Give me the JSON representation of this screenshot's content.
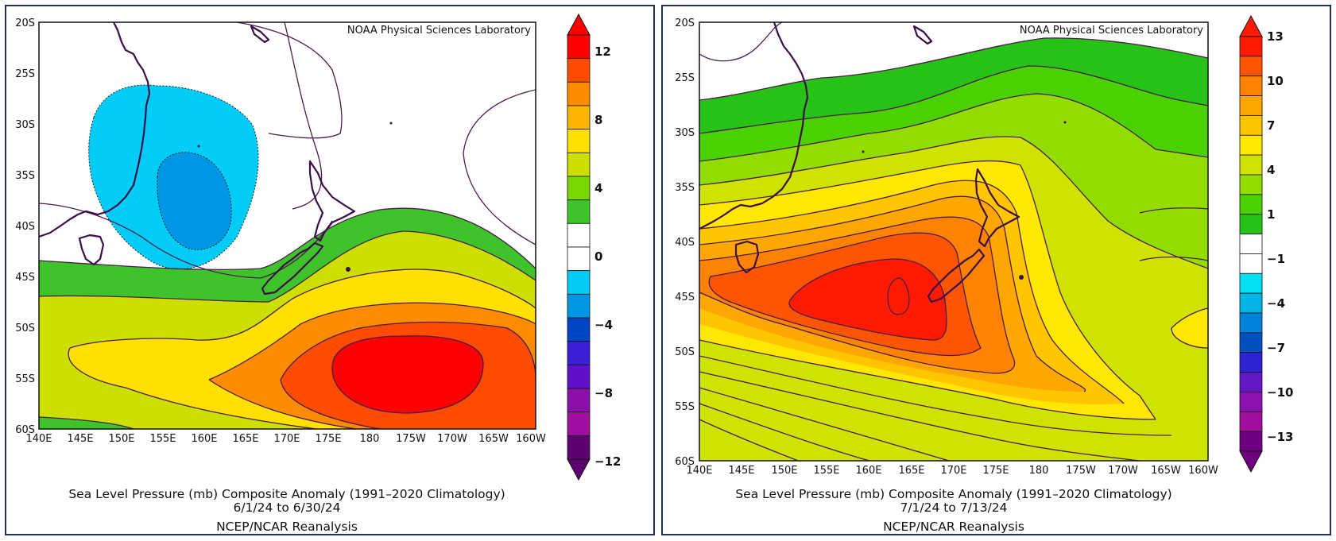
{
  "panels": [
    {
      "credit": "NOAA Physical Sciences Laboratory",
      "title_line1": "Sea Level Pressure (mb) Composite Anomaly (1991–2020 Climatology)",
      "title_line2": "6/1/24   to 6/30/24",
      "title_line3": "NCEP/NCAR Reanalysis",
      "lat_labels": [
        "20S",
        "25S",
        "30S",
        "35S",
        "40S",
        "45S",
        "50S",
        "55S",
        "60S"
      ],
      "lon_labels": [
        "140E",
        "145E",
        "150E",
        "155E",
        "160E",
        "165E",
        "170E",
        "175E",
        "180",
        "175W",
        "170W",
        "165W",
        "160W"
      ],
      "colorbar": {
        "labels": [
          "12",
          "8",
          "4",
          "0",
          "−4",
          "−8",
          "−12"
        ],
        "colors": [
          "#ff0000",
          "#ff4c00",
          "#ff8c00",
          "#ffb300",
          "#ffe000",
          "#ccdf00",
          "#7ad800",
          "#3ec32a",
          "#ffffff",
          "#ffffff",
          "#00ccf5",
          "#0096e6",
          "#0045c4",
          "#3a1fd6",
          "#5f10c8",
          "#8b0fa8",
          "#a10fa0",
          "#5d0070"
        ]
      },
      "chart_data": {
        "type": "heatmap",
        "variable": "Sea Level Pressure (mb) Composite Anomaly",
        "period": "6/1/24 to 6/30/24",
        "lat_range": [
          "20S",
          "60S"
        ],
        "lon_range": [
          "140E",
          "160W"
        ],
        "contour_interval_mb": 2,
        "colorbar_range": [
          -12,
          12
        ],
        "features": [
          {
            "label": "max positive anomaly",
            "value_mb": 12,
            "lat": "53S",
            "lon": "177W"
          },
          {
            "label": "min negative anomaly",
            "value_mb": -4,
            "lat": "37S",
            "lon": "159E"
          }
        ]
      }
    },
    {
      "credit": "NOAA Physical Sciences Laboratory",
      "title_line1": "Sea Level Pressure (mb) Composite Anomaly (1991–2020 Climatology)",
      "title_line2": "7/1/24   to 7/13/24",
      "title_line3": "NCEP/NCAR Reanalysis",
      "lat_labels": [
        "20S",
        "25S",
        "30S",
        "35S",
        "40S",
        "45S",
        "50S",
        "55S",
        "60S"
      ],
      "lon_labels": [
        "140E",
        "145E",
        "150E",
        "155E",
        "160E",
        "165E",
        "170E",
        "175E",
        "180",
        "175W",
        "170W",
        "165W",
        "160W"
      ],
      "colorbar": {
        "labels": [
          "13",
          "10",
          "7",
          "4",
          "1",
          "−1",
          "−4",
          "−7",
          "−10",
          "−13"
        ],
        "colors": [
          "#ff1a00",
          "#ff5500",
          "#ff8200",
          "#ffa600",
          "#ffc600",
          "#ffe800",
          "#cfe300",
          "#92dc00",
          "#4bd000",
          "#26c215",
          "#ffffff",
          "#ffffff",
          "#00e0f0",
          "#00b4e6",
          "#0083d9",
          "#0050c2",
          "#2d23d0",
          "#6318c8",
          "#8e12b0",
          "#a00f9c",
          "#6e0080"
        ]
      },
      "chart_data": {
        "type": "heatmap",
        "variable": "Sea Level Pressure (mb) Composite Anomaly",
        "period": "7/1/24 to 7/13/24",
        "lat_range": [
          "20S",
          "60S"
        ],
        "lon_range": [
          "140E",
          "160W"
        ],
        "contour_interval_mb": 1,
        "colorbar_range": [
          -13,
          13
        ],
        "features": [
          {
            "label": "max positive anomaly",
            "value_mb": 13,
            "lat": "46S",
            "lon": "162E"
          }
        ]
      }
    }
  ]
}
